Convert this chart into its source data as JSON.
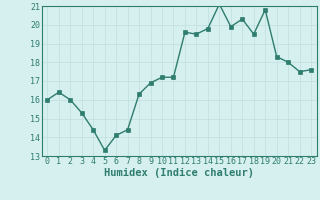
{
  "x": [
    0,
    1,
    2,
    3,
    4,
    5,
    6,
    7,
    8,
    9,
    10,
    11,
    12,
    13,
    14,
    15,
    16,
    17,
    18,
    19,
    20,
    21,
    22,
    23
  ],
  "y": [
    16.0,
    16.4,
    16.0,
    15.3,
    14.4,
    13.3,
    14.1,
    14.4,
    16.3,
    16.9,
    17.2,
    17.2,
    19.6,
    19.5,
    19.8,
    21.1,
    19.9,
    20.3,
    19.5,
    20.8,
    18.3,
    18.0,
    17.5,
    17.6
  ],
  "xlabel": "Humidex (Indice chaleur)",
  "xlim": [
    -0.5,
    23.5
  ],
  "ylim": [
    13,
    21
  ],
  "yticks": [
    13,
    14,
    15,
    16,
    17,
    18,
    19,
    20,
    21
  ],
  "xticks": [
    0,
    1,
    2,
    3,
    4,
    5,
    6,
    7,
    8,
    9,
    10,
    11,
    12,
    13,
    14,
    15,
    16,
    17,
    18,
    19,
    20,
    21,
    22,
    23
  ],
  "line_color": "#2e7d6e",
  "marker_color": "#2e7d6e",
  "bg_color": "#d6efef",
  "grid_color": "#c4e0e0",
  "xlabel_fontsize": 7.5,
  "tick_fontsize": 6.0,
  "line_width": 1.0,
  "marker_size": 2.5
}
